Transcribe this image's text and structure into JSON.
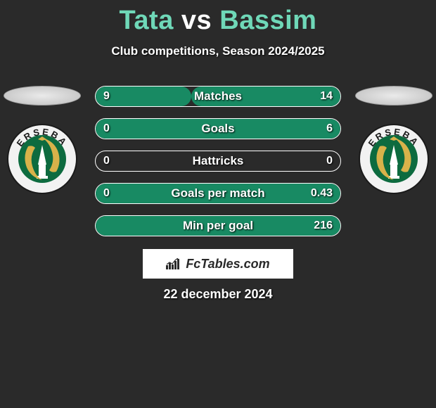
{
  "colors": {
    "background": "#2a2a2a",
    "title_accent": "#6fd8b8",
    "bar_fill": "#188a63",
    "bar_border": "#ffffff",
    "text": "#ffffff",
    "brand_bg": "#ffffff",
    "brand_fg": "#2a2a2a"
  },
  "header": {
    "player1": "Tata",
    "vs": "vs",
    "player2": "Bassim",
    "subtitle": "Club competitions, Season 2024/2025"
  },
  "stats": [
    {
      "label": "Matches",
      "left_val": "9",
      "right_val": "14",
      "left_pct": 39,
      "right_pct": 61
    },
    {
      "label": "Goals",
      "left_val": "0",
      "right_val": "6",
      "left_pct": 0,
      "right_pct": 100
    },
    {
      "label": "Hattricks",
      "left_val": "0",
      "right_val": "0",
      "left_pct": 0,
      "right_pct": 0
    },
    {
      "label": "Goals per match",
      "left_val": "0",
      "right_val": "0.43",
      "left_pct": 0,
      "right_pct": 100
    },
    {
      "label": "Min per goal",
      "left_val": "",
      "right_val": "216",
      "left_pct": 0,
      "right_pct": 100
    }
  ],
  "brand": {
    "text": "FcTables.com"
  },
  "date": "22 december 2024",
  "badge": {
    "ring_bg": "#f2f2f2",
    "ring_text": "ERSEBA",
    "ring_text_color": "#1a1a1a",
    "inner_bg": "#0d6b3f",
    "monument_color": "#ffffff",
    "fish_color": "#d8b24a"
  }
}
